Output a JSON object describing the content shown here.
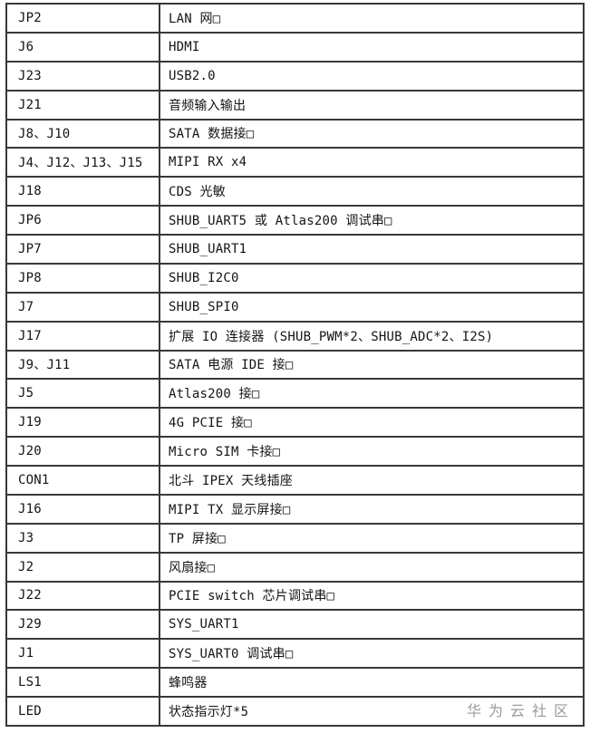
{
  "page": {
    "background": "#ffffff"
  },
  "table": {
    "border_color": "#383838",
    "columns": [
      "designator",
      "description"
    ],
    "rows": [
      {
        "designator": "JP2",
        "description": "LAN 网□"
      },
      {
        "designator": "J6",
        "description": "HDMI"
      },
      {
        "designator": "J23",
        "description": "USB2.0"
      },
      {
        "designator": "J21",
        "description": "音频输入输出"
      },
      {
        "designator": "J8、J10",
        "description": "SATA 数据接□"
      },
      {
        "designator": "J4、J12、J13、J15",
        "description": "MIPI RX x4"
      },
      {
        "designator": "J18",
        "description": "CDS 光敏"
      },
      {
        "designator": "JP6",
        "description": "SHUB_UART5 或 Atlas200 调试串□"
      },
      {
        "designator": "JP7",
        "description": "SHUB_UART1"
      },
      {
        "designator": "JP8",
        "description": "SHUB_I2C0"
      },
      {
        "designator": "J7",
        "description": "SHUB_SPI0"
      },
      {
        "designator": "J17",
        "description": "扩展 IO 连接器 (SHUB_PWM*2、SHUB_ADC*2、I2S)"
      },
      {
        "designator": "J9、J11",
        "description": "SATA 电源 IDE 接□"
      },
      {
        "designator": "J5",
        "description": "Atlas200 接□"
      },
      {
        "designator": "J19",
        "description": "4G PCIE 接□"
      },
      {
        "designator": "J20",
        "description": "Micro SIM 卡接□"
      },
      {
        "designator": "CON1",
        "description": "北斗 IPEX 天线插座"
      },
      {
        "designator": "J16",
        "description": "MIPI TX 显示屏接□"
      },
      {
        "designator": "J3",
        "description": "TP 屏接□"
      },
      {
        "designator": "J2",
        "description": "风扇接□"
      },
      {
        "designator": "J22",
        "description": "PCIE switch 芯片调试串□"
      },
      {
        "designator": "J29",
        "description": "SYS_UART1"
      },
      {
        "designator": "J1",
        "description": "SYS_UART0 调试串□"
      },
      {
        "designator": "LS1",
        "description": "蜂鸣器"
      },
      {
        "designator": "LED",
        "description": "状态指示灯*5"
      }
    ]
  },
  "watermark": {
    "text": "华为云社区",
    "color": "#9a9a9a"
  }
}
